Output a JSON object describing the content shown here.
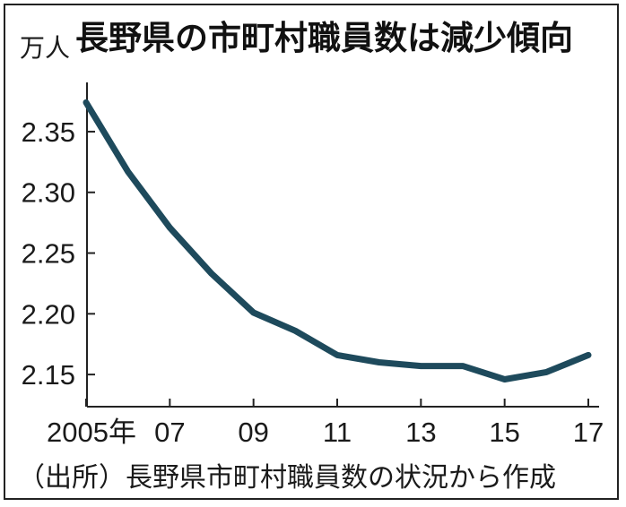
{
  "chart_data": {
    "type": "line",
    "title": "長野県の市町村職員数は減少傾向",
    "unit": "万人",
    "source": "（出所）長野県市町村職員数の状況から作成",
    "x": [
      2005,
      2006,
      2007,
      2008,
      2009,
      2010,
      2011,
      2012,
      2013,
      2014,
      2015,
      2016,
      2017
    ],
    "x_tick_values": [
      2005,
      2007,
      2009,
      2011,
      2013,
      2015,
      2017
    ],
    "x_tick_labels": [
      "2005年",
      "07",
      "09",
      "11",
      "13",
      "15",
      "17"
    ],
    "y_tick_values": [
      2.15,
      2.2,
      2.25,
      2.3,
      2.35
    ],
    "y_tick_labels": [
      "2.15",
      "2.20",
      "2.25",
      "2.30",
      "2.35"
    ],
    "series": [
      {
        "values": [
          2.374,
          2.317,
          2.271,
          2.233,
          2.201,
          2.186,
          2.166,
          2.16,
          2.157,
          2.157,
          2.146,
          2.152,
          2.166
        ]
      }
    ],
    "xlim": [
      2005,
      2017
    ],
    "ylim": [
      2.125,
      2.392
    ],
    "grid": false,
    "line_color": "#1e4a5c"
  }
}
